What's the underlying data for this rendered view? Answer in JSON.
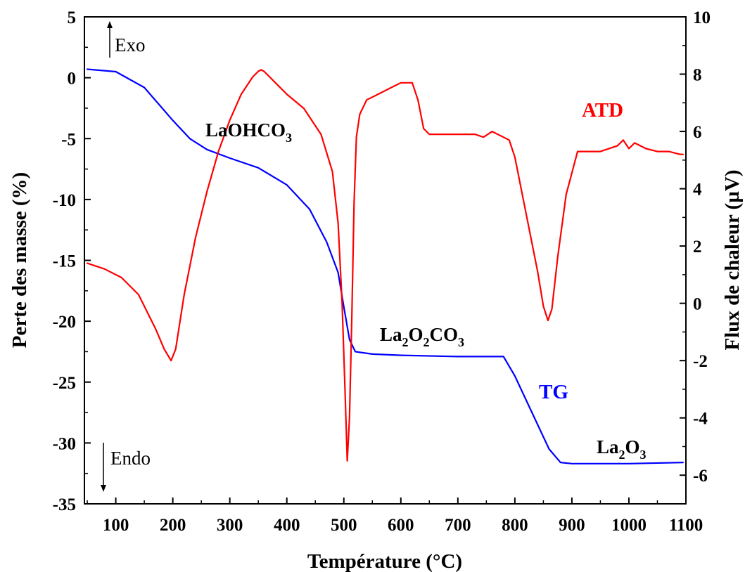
{
  "chart_data": {
    "type": "line",
    "xlabel": "Température (°C)",
    "ylabel": "Perte des masse (%)",
    "y2label": "Flux de chaleur (µV)",
    "xlim": [
      45,
      1100
    ],
    "ylim": [
      -35,
      5
    ],
    "y2lim": [
      -7,
      10
    ],
    "xticks": [
      "100",
      "200",
      "300",
      "400",
      "500",
      "600",
      "700",
      "800",
      "900",
      "1000",
      "1100"
    ],
    "yticks": [
      "5",
      "0",
      "-5",
      "-10",
      "-15",
      "-20",
      "-25",
      "-30",
      "-35"
    ],
    "y2ticks": [
      "10",
      "8",
      "6",
      "4",
      "2",
      "0",
      "-2",
      "-4",
      "-6"
    ],
    "grid": false,
    "series": [
      {
        "name": "TG",
        "axis": "left",
        "color": "#0000ff",
        "x": [
          50,
          100,
          150,
          200,
          230,
          260,
          300,
          350,
          400,
          440,
          470,
          490,
          500,
          510,
          520,
          550,
          600,
          700,
          780,
          800,
          830,
          860,
          880,
          900,
          1000,
          1095
        ],
        "y": [
          0.7,
          0.5,
          -0.8,
          -3.5,
          -5.0,
          -5.9,
          -6.6,
          -7.4,
          -8.8,
          -10.8,
          -13.5,
          -16.0,
          -18.8,
          -21.5,
          -22.5,
          -22.7,
          -22.8,
          -22.9,
          -22.9,
          -24.5,
          -27.5,
          -30.5,
          -31.6,
          -31.7,
          -31.7,
          -31.6
        ]
      },
      {
        "name": "ATD",
        "axis": "right",
        "color": "#ff0000",
        "x": [
          50,
          80,
          110,
          140,
          170,
          185,
          197,
          205,
          220,
          240,
          260,
          280,
          300,
          320,
          340,
          350,
          355,
          360,
          380,
          400,
          430,
          460,
          480,
          490,
          497,
          502,
          506,
          510,
          514,
          518,
          522,
          528,
          540,
          560,
          580,
          600,
          620,
          630,
          640,
          650,
          700,
          730,
          745,
          760,
          790,
          800,
          820,
          840,
          850,
          858,
          865,
          875,
          890,
          910,
          950,
          980,
          990,
          1000,
          1010,
          1030,
          1050,
          1070,
          1090,
          1095
        ],
        "y": [
          1.4,
          1.2,
          0.9,
          0.3,
          -0.9,
          -1.6,
          -2.0,
          -1.6,
          0.3,
          2.3,
          3.9,
          5.3,
          6.4,
          7.3,
          7.9,
          8.1,
          8.15,
          8.1,
          7.7,
          7.3,
          6.8,
          5.9,
          4.6,
          2.8,
          0.0,
          -3.0,
          -5.5,
          -4.0,
          -0.5,
          3.5,
          5.8,
          6.6,
          7.1,
          7.3,
          7.5,
          7.7,
          7.7,
          7.1,
          6.1,
          5.9,
          5.9,
          5.9,
          5.8,
          6.0,
          5.7,
          5.1,
          3.1,
          1.1,
          -0.1,
          -0.6,
          -0.2,
          1.6,
          3.8,
          5.3,
          5.3,
          5.5,
          5.7,
          5.4,
          5.6,
          5.4,
          5.3,
          5.3,
          5.2,
          5.2
        ]
      }
    ],
    "annotations": {
      "series_label_tg": "TG",
      "series_label_atd": "ATD",
      "exo": "Exo",
      "endo": "Endo",
      "laohco3_main": "LaOHCO",
      "laohco3_sub": "3",
      "la2o2co3_a": "La",
      "la2o2co3_sub1": "2",
      "la2o2co3_b": "O",
      "la2o2co3_sub2": "2",
      "la2o2co3_c": "CO",
      "la2o2co3_sub3": "3",
      "la2o3_a": "La",
      "la2o3_sub1": "2",
      "la2o3_b": "O",
      "la2o3_sub2": "3"
    }
  }
}
